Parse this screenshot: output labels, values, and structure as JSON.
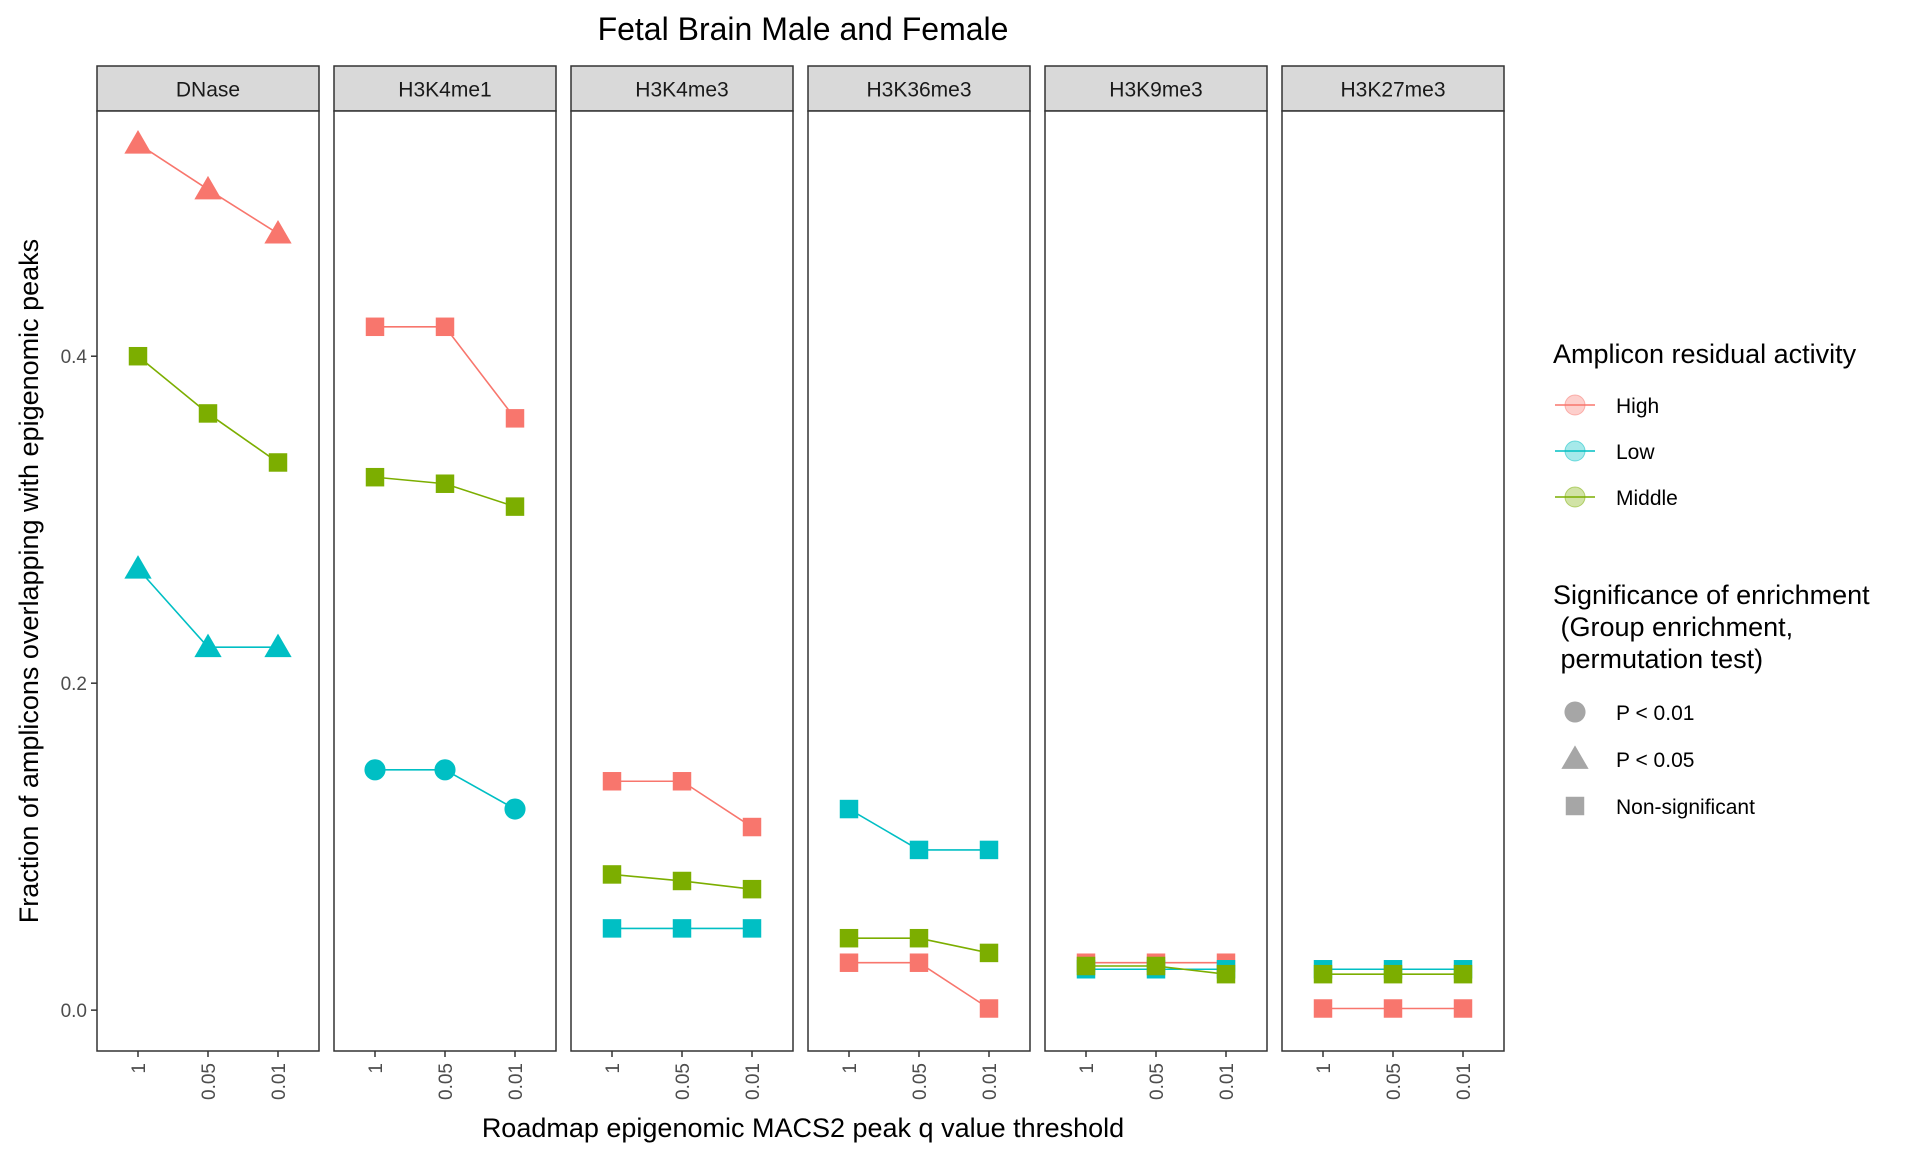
{
  "chart_data": {
    "type": "line",
    "title": "Fetal Brain Male and Female",
    "xlabel": "Roadmap epigenomic MACS2 peak q value threshold",
    "ylabel": "Fraction of amplicons overlapping with epigenomic peaks",
    "x": [
      "1",
      "0.05",
      "0.01"
    ],
    "yticks": [
      "0.0",
      "0.2",
      "0.4"
    ],
    "ylim": [
      -0.025,
      0.55
    ],
    "grid": false,
    "colors": {
      "High": "#F8766D",
      "Low": "#00BFC4",
      "Middle": "#7CAE00"
    },
    "facets": [
      {
        "name": "DNase",
        "series": [
          {
            "name": "High",
            "values": [
              0.53,
              0.502,
              0.475
            ],
            "shapes": [
              "triangle",
              "triangle",
              "triangle"
            ]
          },
          {
            "name": "Middle",
            "values": [
              0.4,
              0.365,
              0.335
            ],
            "shapes": [
              "square",
              "square",
              "square"
            ]
          },
          {
            "name": "Low",
            "values": [
              0.27,
              0.222,
              0.222
            ],
            "shapes": [
              "triangle",
              "triangle",
              "triangle"
            ]
          }
        ]
      },
      {
        "name": "H3K4me1",
        "series": [
          {
            "name": "High",
            "values": [
              0.418,
              0.418,
              0.362
            ],
            "shapes": [
              "square",
              "square",
              "square"
            ]
          },
          {
            "name": "Middle",
            "values": [
              0.326,
              0.322,
              0.308
            ],
            "shapes": [
              "square",
              "square",
              "square"
            ]
          },
          {
            "name": "Low",
            "values": [
              0.147,
              0.147,
              0.123
            ],
            "shapes": [
              "circle",
              "circle",
              "circle"
            ]
          }
        ]
      },
      {
        "name": "H3K4me3",
        "series": [
          {
            "name": "High",
            "values": [
              0.14,
              0.14,
              0.112
            ],
            "shapes": [
              "square",
              "square",
              "square"
            ]
          },
          {
            "name": "Middle",
            "values": [
              0.083,
              0.079,
              0.074
            ],
            "shapes": [
              "square",
              "square",
              "square"
            ]
          },
          {
            "name": "Low",
            "values": [
              0.05,
              0.05,
              0.05
            ],
            "shapes": [
              "square",
              "square",
              "square"
            ]
          }
        ]
      },
      {
        "name": "H3K36me3",
        "series": [
          {
            "name": "Low",
            "values": [
              0.123,
              0.098,
              0.098
            ],
            "shapes": [
              "square",
              "square",
              "square"
            ]
          },
          {
            "name": "Middle",
            "values": [
              0.044,
              0.044,
              0.035
            ],
            "shapes": [
              "square",
              "square",
              "square"
            ]
          },
          {
            "name": "High",
            "values": [
              0.029,
              0.029,
              0.001
            ],
            "shapes": [
              "square",
              "square",
              "square"
            ]
          }
        ]
      },
      {
        "name": "H3K9me3",
        "series": [
          {
            "name": "High",
            "values": [
              0.029,
              0.029,
              0.029
            ],
            "shapes": [
              "square",
              "square",
              "square"
            ]
          },
          {
            "name": "Low",
            "values": [
              0.025,
              0.025,
              0.025
            ],
            "shapes": [
              "square",
              "square",
              "square"
            ]
          },
          {
            "name": "Middle",
            "values": [
              0.027,
              0.027,
              0.022
            ],
            "shapes": [
              "square",
              "square",
              "square"
            ]
          }
        ]
      },
      {
        "name": "H3K27me3",
        "series": [
          {
            "name": "High",
            "values": [
              0.001,
              0.001,
              0.001
            ],
            "shapes": [
              "square",
              "square",
              "square"
            ]
          },
          {
            "name": "Low",
            "values": [
              0.025,
              0.025,
              0.025
            ],
            "shapes": [
              "square",
              "square",
              "square"
            ]
          },
          {
            "name": "Middle",
            "values": [
              0.022,
              0.022,
              0.022
            ],
            "shapes": [
              "square",
              "square",
              "square"
            ]
          }
        ]
      }
    ],
    "legend_placement": "right",
    "legends": [
      {
        "title": "Amplicon residual activity",
        "items": [
          {
            "label": "High",
            "color": "#F8766D"
          },
          {
            "label": "Low",
            "color": "#00BFC4"
          },
          {
            "label": "Middle",
            "color": "#7CAE00"
          }
        ]
      },
      {
        "title_lines": [
          "Significance of enrichment",
          " (Group enrichment,",
          " permutation test)"
        ],
        "items": [
          {
            "label": "P < 0.01",
            "shape": "circle"
          },
          {
            "label": "P < 0.05",
            "shape": "triangle"
          },
          {
            "label": "Non-significant",
            "shape": "square"
          }
        ]
      }
    ]
  }
}
